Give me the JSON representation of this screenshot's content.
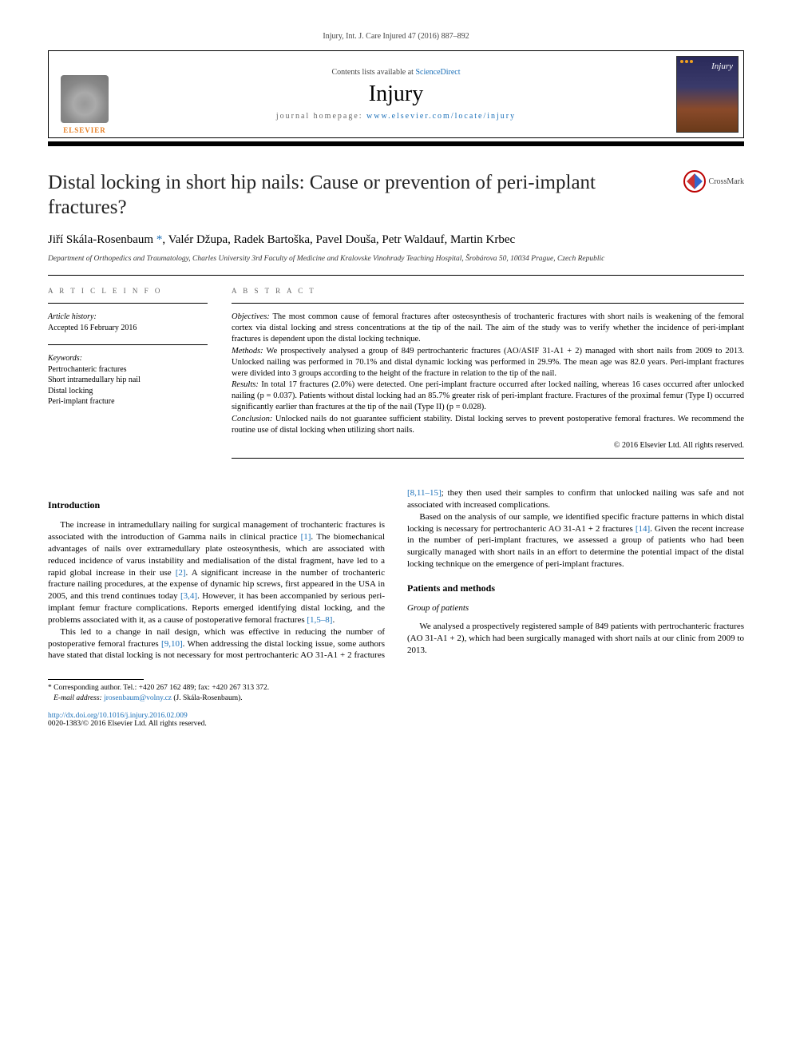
{
  "header": {
    "citation": "Injury, Int. J. Care Injured 47 (2016) 887–892",
    "contents_prefix": "Contents lists available at ",
    "contents_link": "ScienceDirect",
    "journal": "Injury",
    "homepage_prefix": "journal homepage: ",
    "homepage_link": "www.elsevier.com/locate/injury",
    "publisher_logo_text": "ELSEVIER",
    "cover_title": "Injury"
  },
  "crossmark": {
    "label": "CrossMark"
  },
  "title": "Distal locking in short hip nails: Cause or prevention of peri-implant fractures?",
  "authors_html": "Jiří Skála-Rosenbaum *, Valér Džupa, Radek Bartoška, Pavel Douša, Petr Waldauf, Martin Krbec",
  "author_names": [
    "Jiří Skála-Rosenbaum",
    "Valér Džupa",
    "Radek Bartoška",
    "Pavel Douša",
    "Petr Waldauf",
    "Martin Krbec"
  ],
  "corresponding_marker": "*",
  "affiliation": "Department of Orthopedics and Traumatology, Charles University 3rd Faculty of Medicine and Kralovske Vinohrady Teaching Hospital, Šrobárova 50, 10034 Prague, Czech Republic",
  "info": {
    "label": "A R T I C L E  I N F O",
    "history_hdr": "Article history:",
    "history": "Accepted 16 February 2016",
    "keywords_hdr": "Keywords:",
    "keywords": [
      "Pertrochanteric fractures",
      "Short intramedullary hip nail",
      "Distal locking",
      "Peri-implant fracture"
    ]
  },
  "abstract": {
    "label": "A B S T R A C T",
    "objectives_hdr": "Objectives:",
    "objectives": " The most common cause of femoral fractures after osteosynthesis of trochanteric fractures with short nails is weakening of the femoral cortex via distal locking and stress concentrations at the tip of the nail. The aim of the study was to verify whether the incidence of peri-implant fractures is dependent upon the distal locking technique.",
    "methods_hdr": "Methods:",
    "methods": " We prospectively analysed a group of 849 pertrochanteric fractures (AO/ASIF 31-A1 + 2) managed with short nails from 2009 to 2013. Unlocked nailing was performed in 70.1% and distal dynamic locking was performed in 29.9%. The mean age was 82.0 years. Peri-implant fractures were divided into 3 groups according to the height of the fracture in relation to the tip of the nail.",
    "results_hdr": "Results:",
    "results": " In total 17 fractures (2.0%) were detected. One peri-implant fracture occurred after locked nailing, whereas 16 cases occurred after unlocked nailing (p = 0.037). Patients without distal locking had an 85.7% greater risk of peri-implant fracture. Fractures of the proximal femur (Type I) occurred significantly earlier than fractures at the tip of the nail (Type II) (p = 0.028).",
    "conclusion_hdr": "Conclusion:",
    "conclusion": " Unlocked nails do not guarantee sufficient stability. Distal locking serves to prevent postoperative femoral fractures. We recommend the routine use of distal locking when utilizing short nails.",
    "copyright": "© 2016 Elsevier Ltd. All rights reserved."
  },
  "body": {
    "intro_hdr": "Introduction",
    "intro_p1a": "The increase in intramedullary nailing for surgical management of trochanteric fractures is associated with the introduction of Gamma nails in clinical practice ",
    "intro_p1_ref1": "[1]",
    "intro_p1b": ". The biomechanical advantages of nails over extramedullary plate osteosynthesis, which are associated with reduced incidence of varus instability and medialisation of the distal fragment, have led to a rapid global increase in their use ",
    "intro_p1_ref2": "[2]",
    "intro_p1c": ". A significant increase in the number of trochanteric fracture nailing procedures, at the expense of dynamic hip screws, first appeared in the USA in 2005, and this trend continues today ",
    "intro_p1_ref3": "[3,4]",
    "intro_p1d": ". However, it has been accompanied by serious peri-implant femur fracture complications. Reports emerged identifying distal locking, and the problems associated with it, as a cause of postoperative femoral fractures ",
    "intro_p1_ref4": "[1,5–8]",
    "intro_p1e": ".",
    "intro_p2a": "This led to a change in nail design, which was effective in reducing the number of postoperative femoral fractures ",
    "intro_p2_ref1": "[9,10]",
    "intro_p2b": ". When addressing the distal locking issue, some authors have stated that distal locking is not necessary for most pertrochanteric AO 31-A1 + 2 fractures ",
    "intro_p2_ref2": "[8,11–15]",
    "intro_p2c": "; they then used their samples to confirm that unlocked nailing was safe and not associated with increased complications.",
    "intro_p3a": "Based on the analysis of our sample, we identified specific fracture patterns in which distal locking is necessary for pertrochanteric AO 31-A1 + 2 fractures ",
    "intro_p3_ref1": "[14]",
    "intro_p3b": ". Given the recent increase in the number of peri-implant fractures, we assessed a group of patients who had been surgically managed with short nails in an effort to determine the potential impact of the distal locking technique on the emergence of peri-implant fractures.",
    "pm_hdr": "Patients and methods",
    "pm_sub": "Group of patients",
    "pm_p1": "We analysed a prospectively registered sample of 849 patients with pertrochanteric fractures (AO 31-A1 + 2), which had been surgically managed with short nails at our clinic from 2009 to 2013."
  },
  "footnotes": {
    "corr": "* Corresponding author. Tel.: +420 267 162 489; fax: +420 267 313 372.",
    "email_label": "E-mail address: ",
    "email": "jrosenbaum@volny.cz",
    "email_suffix": " (J. Skála-Rosenbaum)."
  },
  "doi": {
    "url": "http://dx.doi.org/10.1016/j.injury.2016.02.009",
    "issn": "0020-1383/© 2016 Elsevier Ltd. All rights reserved."
  },
  "colors": {
    "link": "#1a6fb8",
    "text": "#000000",
    "muted": "#666666",
    "publisher": "#e67e22"
  }
}
